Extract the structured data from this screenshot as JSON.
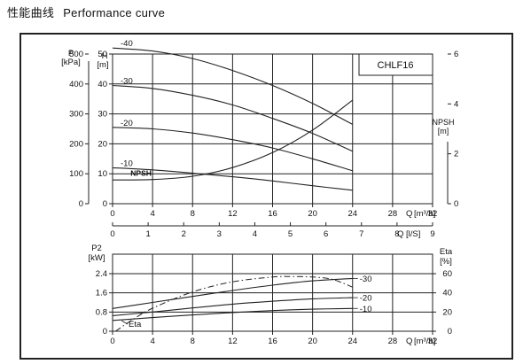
{
  "heading": {
    "zh": "性能曲线",
    "en": "Performance curve"
  },
  "chart_data": [
    {
      "type": "line",
      "model": "CHLF16",
      "x_axis": {
        "label": "Q",
        "unit": "[m³/h]",
        "min": 0,
        "max": 32,
        "ticks": [
          "0",
          "4",
          "8",
          "12",
          "16",
          "20",
          "24",
          "28",
          "32"
        ]
      },
      "x2_axis": {
        "label": "Q",
        "unit": "[l/S]",
        "min": 0,
        "max": 9,
        "ticks": [
          "0",
          "1",
          "2",
          "3",
          "4",
          "5",
          "6",
          "7",
          "8",
          "9"
        ]
      },
      "y_left_outer": {
        "label": "P",
        "unit": "[kPa]",
        "min": 0,
        "max": 500,
        "ticks": [
          "0",
          "100",
          "200",
          "300",
          "400",
          "500"
        ]
      },
      "y_left_inner": {
        "label": "H",
        "unit": "[m]",
        "min": 0,
        "max": 50,
        "ticks": [
          "0",
          "10",
          "20",
          "30",
          "40",
          "50"
        ]
      },
      "y_right": {
        "label": "NPSH",
        "unit": "[m]",
        "min": 0,
        "max": 6,
        "ticks": [
          "0",
          "2",
          "4",
          "6"
        ]
      },
      "npsh_label": "NPSH",
      "grid": true,
      "series": [
        {
          "name": "-40",
          "axis": "H",
          "x": [
            0,
            4,
            8,
            12,
            16,
            20,
            24
          ],
          "y": [
            52,
            51,
            48.5,
            44.5,
            39.5,
            33.5,
            26.5
          ]
        },
        {
          "name": "-30",
          "axis": "H",
          "x": [
            0,
            4,
            8,
            12,
            16,
            20,
            24
          ],
          "y": [
            39.5,
            38.5,
            36.2,
            33,
            28.5,
            23.5,
            17.5
          ]
        },
        {
          "name": "-20",
          "axis": "H",
          "x": [
            0,
            4,
            8,
            12,
            16,
            20,
            24
          ],
          "y": [
            25.5,
            25,
            23.6,
            21.4,
            18.6,
            15,
            11
          ]
        },
        {
          "name": "-10",
          "axis": "H",
          "x": [
            0,
            4,
            8,
            12,
            16,
            20,
            24
          ],
          "y": [
            12,
            11.3,
            10.2,
            9,
            7.6,
            6,
            4.5
          ]
        },
        {
          "name": "NPSH",
          "axis": "NPSH",
          "x": [
            0,
            4,
            8,
            12,
            16,
            20,
            24
          ],
          "y": [
            0.95,
            0.97,
            1.1,
            1.45,
            2.05,
            2.95,
            4.15
          ]
        }
      ]
    },
    {
      "type": "line",
      "x_axis": {
        "label": "Q",
        "unit": "[m³/h]",
        "min": 0,
        "max": 32,
        "ticks": [
          "0",
          "4",
          "8",
          "12",
          "16",
          "20",
          "24",
          "28",
          "32"
        ]
      },
      "y_left": {
        "label": "P2",
        "unit": "[kW]",
        "min": 0,
        "max": 2.4,
        "ticks": [
          "0",
          "0.8",
          "1.6",
          "2.4"
        ]
      },
      "y_right": {
        "label": "Eta",
        "unit": "[%]",
        "min": 0,
        "max": 60,
        "ticks": [
          "0",
          "20",
          "40",
          "60"
        ]
      },
      "eta_label": "Eta",
      "grid": true,
      "series": [
        {
          "name": "-30",
          "axis": "P2",
          "x": [
            0,
            4,
            8,
            12,
            16,
            20,
            24
          ],
          "y": [
            0.95,
            1.2,
            1.45,
            1.7,
            1.92,
            2.1,
            2.2
          ]
        },
        {
          "name": "-20",
          "axis": "P2",
          "x": [
            0,
            4,
            8,
            12,
            16,
            20,
            24
          ],
          "y": [
            0.65,
            0.8,
            0.97,
            1.13,
            1.25,
            1.35,
            1.4
          ]
        },
        {
          "name": "-10",
          "axis": "P2",
          "x": [
            0,
            4,
            8,
            12,
            16,
            20,
            24
          ],
          "y": [
            0.45,
            0.57,
            0.68,
            0.78,
            0.86,
            0.92,
            0.95
          ]
        },
        {
          "name": "Eta",
          "axis": "Eta",
          "style": "dash-dot",
          "x": [
            0.3,
            2,
            4,
            8,
            12,
            16,
            18,
            20,
            22,
            24
          ],
          "y": [
            0,
            12,
            24,
            41,
            51.5,
            56.5,
            57,
            56.5,
            54,
            46
          ]
        }
      ]
    }
  ]
}
